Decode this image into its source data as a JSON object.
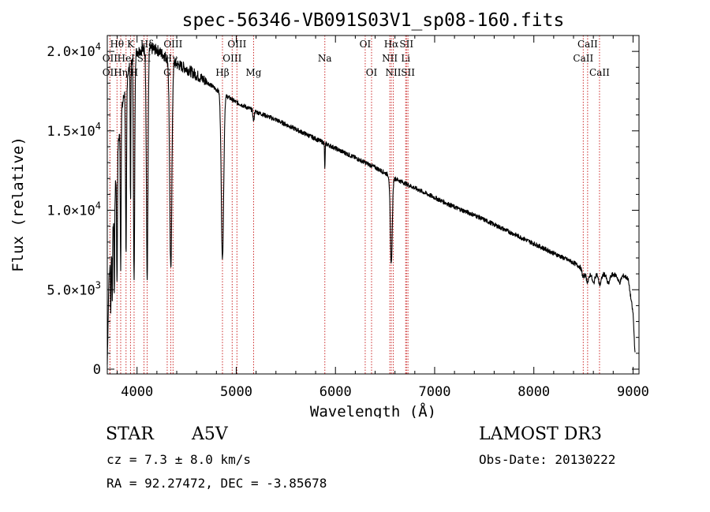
{
  "chart_data": {
    "type": "line",
    "title": "spec-56346-VB091S03V1_sp08-160.fits",
    "xlabel": "Wavelength (Å)",
    "ylabel": "Flux (relative)",
    "xlim": [
      3700,
      9060
    ],
    "ylim": [
      -300,
      21000
    ],
    "x_ticks": [
      4000,
      5000,
      6000,
      7000,
      8000,
      9000
    ],
    "x_tick_labels": [
      "4000",
      "5000",
      "6000",
      "7000",
      "8000",
      "9000"
    ],
    "y_ticks": [
      0,
      5000,
      10000,
      15000,
      20000
    ],
    "y_tick_labels": [
      {
        "mant": "0",
        "exp": ""
      },
      {
        "mant": "5.0×10",
        "exp": "3"
      },
      {
        "mant": "1.0×10",
        "exp": "4"
      },
      {
        "mant": "1.5×10",
        "exp": "4"
      },
      {
        "mant": "2.0×10",
        "exp": "4"
      }
    ],
    "continuum": [
      [
        3700,
        300
      ],
      [
        3715,
        5500
      ],
      [
        3760,
        9000
      ],
      [
        3800,
        13500
      ],
      [
        3850,
        16500
      ],
      [
        3900,
        18500
      ],
      [
        3950,
        19500
      ],
      [
        4000,
        20000
      ],
      [
        4100,
        20200
      ],
      [
        4200,
        20100
      ],
      [
        4300,
        19600
      ],
      [
        4400,
        19200
      ],
      [
        4500,
        18900
      ],
      [
        4600,
        18500
      ],
      [
        4700,
        18100
      ],
      [
        4800,
        17600
      ],
      [
        4900,
        17200
      ],
      [
        5000,
        16800
      ],
      [
        5200,
        16200
      ],
      [
        5400,
        15700
      ],
      [
        5600,
        15100
      ],
      [
        5800,
        14500
      ],
      [
        6000,
        13900
      ],
      [
        6200,
        13300
      ],
      [
        6400,
        12700
      ],
      [
        6600,
        12000
      ],
      [
        6800,
        11400
      ],
      [
        7000,
        10800
      ],
      [
        7200,
        10200
      ],
      [
        7400,
        9700
      ],
      [
        7600,
        9100
      ],
      [
        7800,
        8500
      ],
      [
        8000,
        7900
      ],
      [
        8200,
        7300
      ],
      [
        8400,
        6700
      ],
      [
        8500,
        6300
      ],
      [
        8700,
        6000
      ],
      [
        8900,
        5900
      ],
      [
        8950,
        5700
      ],
      [
        9000,
        3500
      ],
      [
        9020,
        1000
      ]
    ],
    "absorption": [
      {
        "c": 3735,
        "d": 0.5,
        "w": 3
      },
      {
        "c": 3750,
        "d": 0.45,
        "w": 3
      },
      {
        "c": 3771,
        "d": 0.55,
        "w": 3
      },
      {
        "c": 3798,
        "d": 0.6,
        "w": 4
      },
      {
        "c": 3835,
        "d": 0.6,
        "w": 4
      },
      {
        "c": 3889,
        "d": 0.62,
        "w": 5
      },
      {
        "c": 3934,
        "d": 0.45,
        "w": 3
      },
      {
        "c": 3970,
        "d": 0.72,
        "w": 6
      },
      {
        "c": 4102,
        "d": 0.72,
        "w": 8
      },
      {
        "c": 4340,
        "d": 0.68,
        "w": 11
      },
      {
        "c": 4861,
        "d": 0.6,
        "w": 12
      },
      {
        "c": 5175,
        "d": 0.04,
        "w": 6
      },
      {
        "c": 5893,
        "d": 0.12,
        "w": 3
      },
      {
        "c": 6563,
        "d": 0.45,
        "w": 10
      },
      {
        "c": 8498,
        "d": 0.08,
        "w": 12
      },
      {
        "c": 8542,
        "d": 0.12,
        "w": 15
      },
      {
        "c": 8600,
        "d": 0.12,
        "w": 15
      },
      {
        "c": 8665,
        "d": 0.12,
        "w": 15
      },
      {
        "c": 8750,
        "d": 0.1,
        "w": 15
      },
      {
        "c": 8863,
        "d": 0.08,
        "w": 15
      }
    ],
    "line_markers": [
      {
        "label": "Hθ",
        "wavelength": 3798,
        "row": 0
      },
      {
        "label": "OII",
        "wavelength": 3727,
        "row": 1
      },
      {
        "label": "OII",
        "wavelength": 3727,
        "row": 2
      },
      {
        "label": "Hη",
        "wavelength": 3835,
        "row": 2
      },
      {
        "label": "K",
        "wavelength": 3934,
        "row": 0
      },
      {
        "label": "HeI",
        "wavelength": 3889,
        "row": 1
      },
      {
        "label": "Hδ",
        "wavelength": 4102,
        "row": 0
      },
      {
        "label": "SII",
        "wavelength": 4070,
        "row": 1
      },
      {
        "label": "H",
        "wavelength": 3970,
        "row": 2
      },
      {
        "label": "OIII",
        "wavelength": 4363,
        "row": 0
      },
      {
        "label": "Hγ",
        "wavelength": 4340,
        "row": 1
      },
      {
        "label": "G",
        "wavelength": 4304,
        "row": 2
      },
      {
        "label": "OIII",
        "wavelength": 5007,
        "row": 0
      },
      {
        "label": "OIII",
        "wavelength": 4959,
        "row": 1
      },
      {
        "label": "Hβ",
        "wavelength": 4861,
        "row": 2
      },
      {
        "label": "Mg",
        "wavelength": 5175,
        "row": 2
      },
      {
        "label": "Na",
        "wavelength": 5893,
        "row": 1
      },
      {
        "label": "OI",
        "wavelength": 6300,
        "row": 0
      },
      {
        "label": "OI",
        "wavelength": 6364,
        "row": 2
      },
      {
        "label": "Hα",
        "wavelength": 6563,
        "row": 0
      },
      {
        "label": "SII",
        "wavelength": 6716,
        "row": 0
      },
      {
        "label": "NII",
        "wavelength": 6548,
        "row": 1
      },
      {
        "label": "Li",
        "wavelength": 6708,
        "row": 1
      },
      {
        "label": "NII",
        "wavelength": 6583,
        "row": 2
      },
      {
        "label": "SII",
        "wavelength": 6731,
        "row": 2
      },
      {
        "label": "CaII",
        "wavelength": 8542,
        "row": 0
      },
      {
        "label": "CaII",
        "wavelength": 8498,
        "row": 1
      },
      {
        "label": "CaII",
        "wavelength": 8662,
        "row": 2
      }
    ],
    "grid": false
  },
  "info": {
    "class_label": "STAR",
    "subclass": "A5V",
    "survey": "LAMOST DR3",
    "cz": "cz = 7.3 ± 8.0 km/s",
    "obs_date": "Obs-Date: 20130222",
    "radec": "RA =  92.27472, DEC =  -3.85678"
  },
  "colors": {
    "spectrum": "#000000",
    "marker_line": "#cc2a2a",
    "axes": "#000000"
  }
}
